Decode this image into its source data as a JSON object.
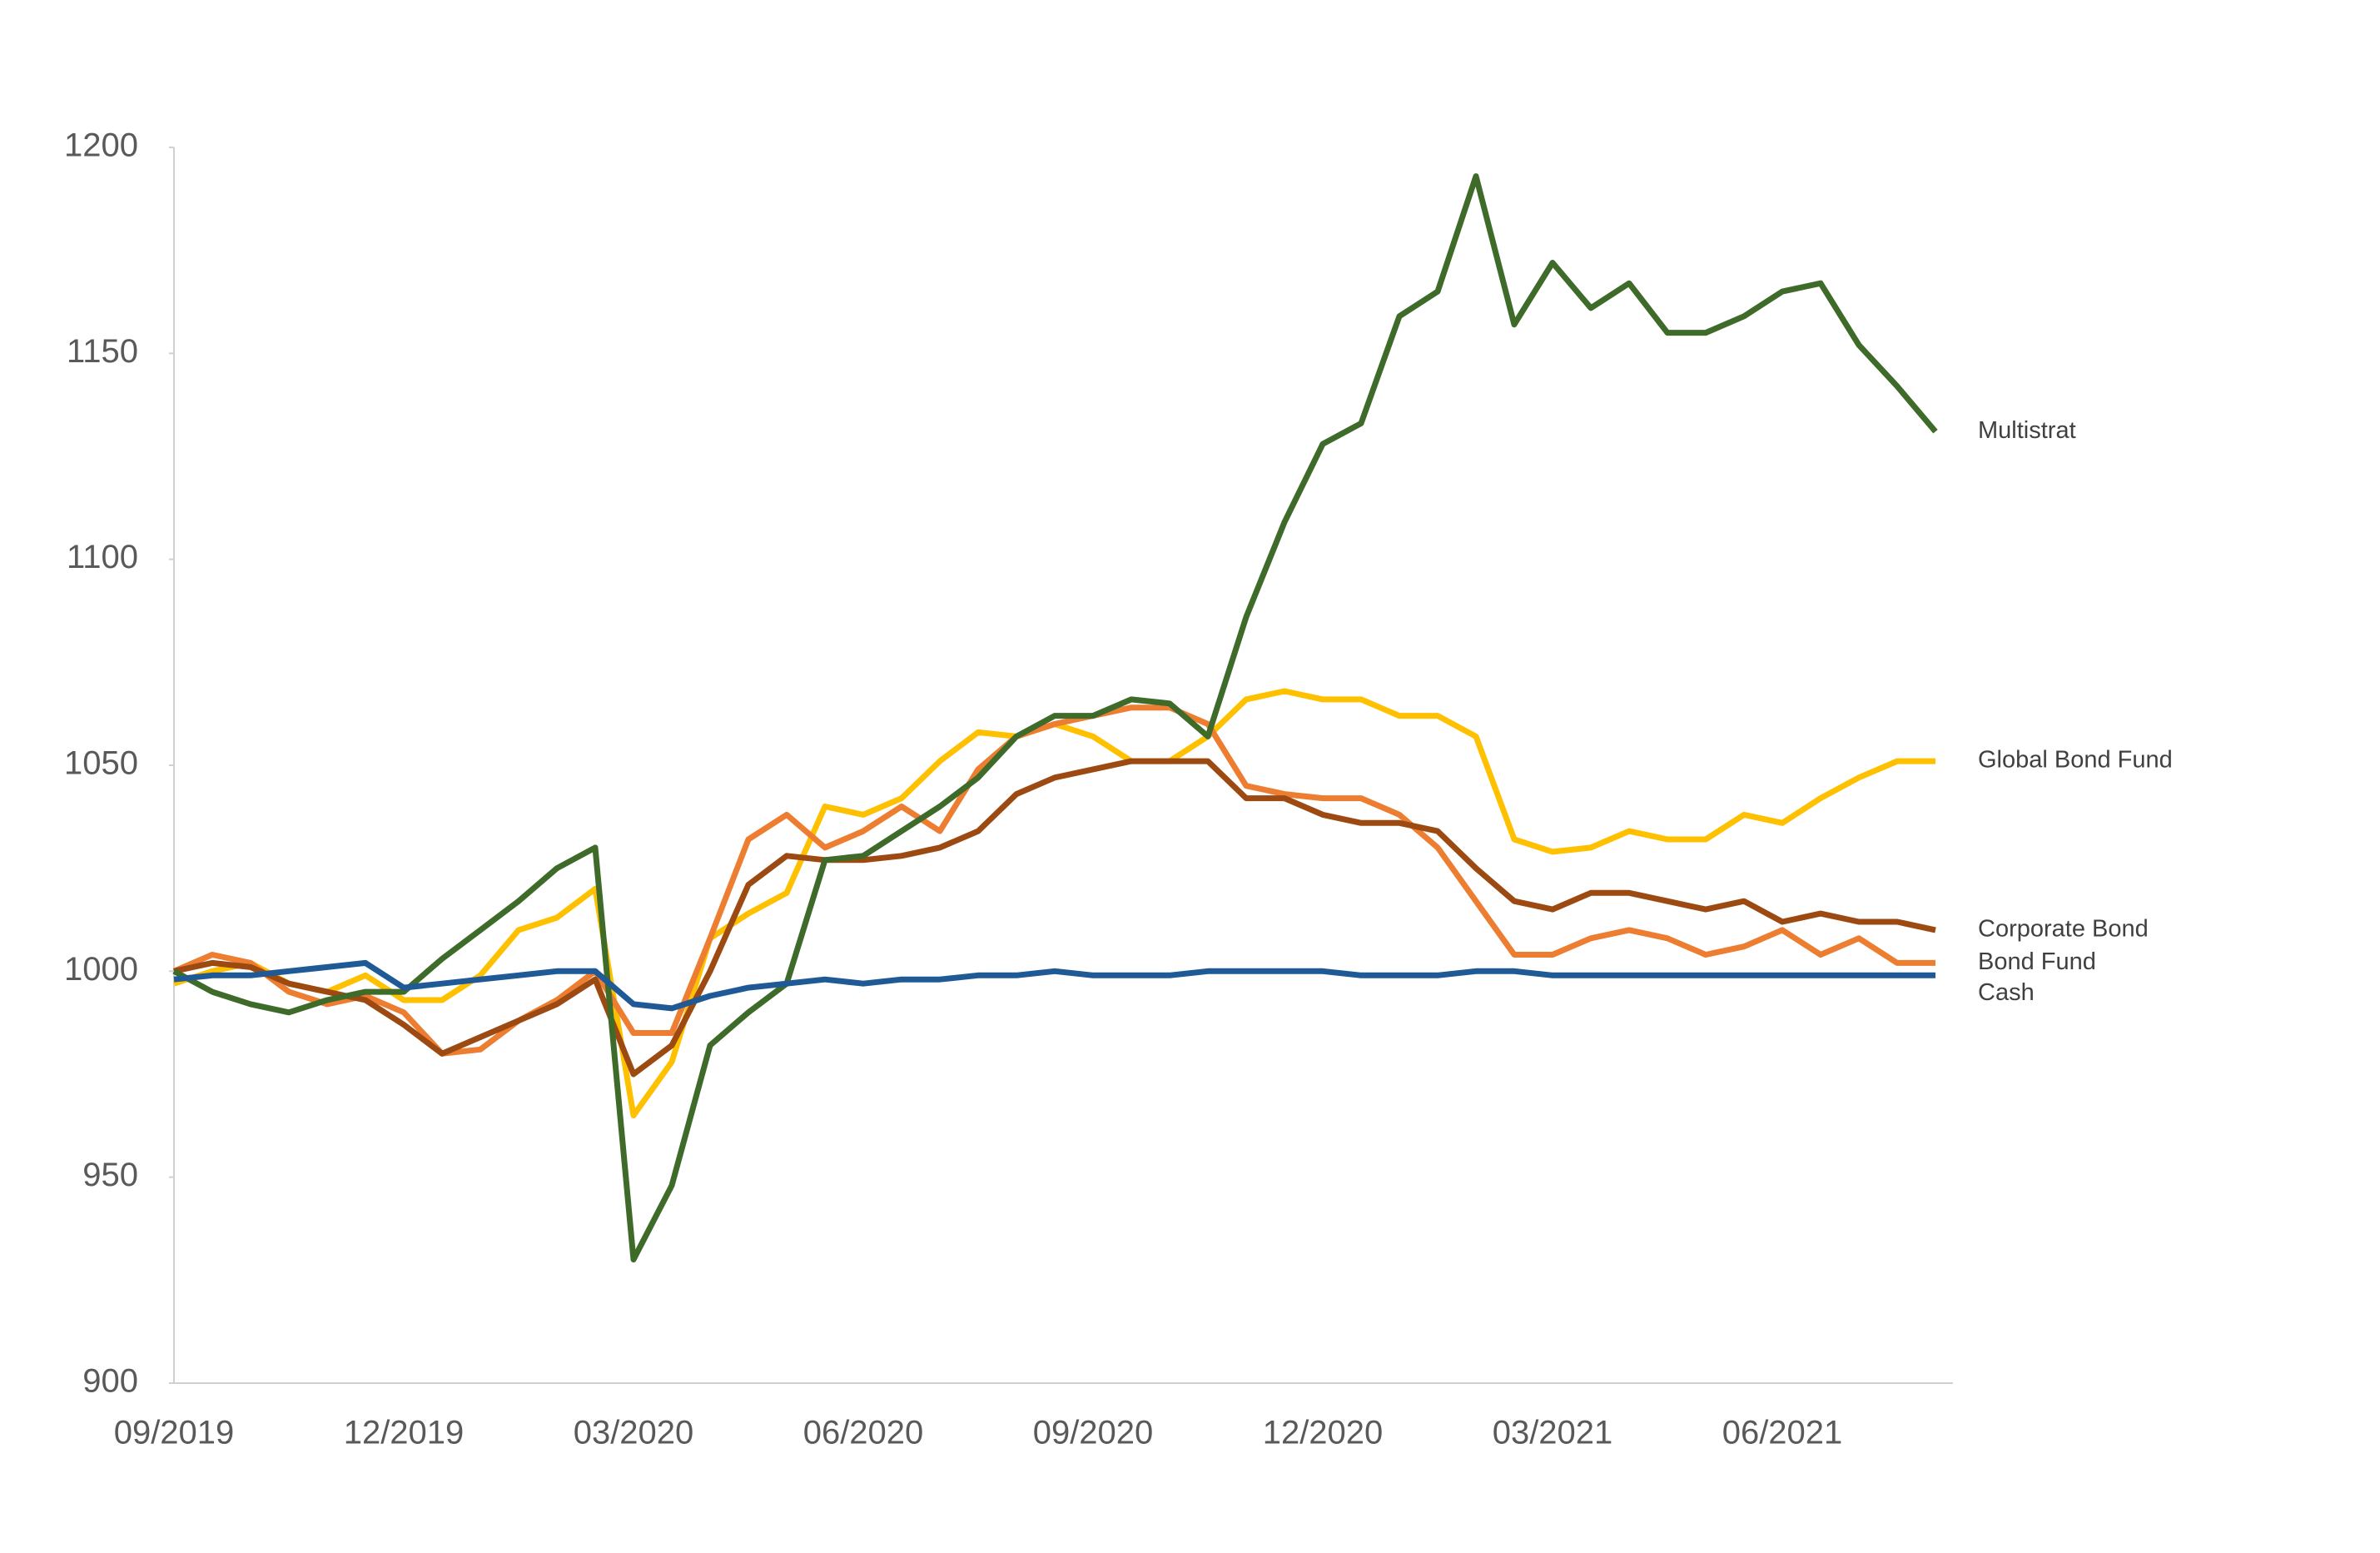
{
  "chart_data": {
    "type": "line",
    "categories": [
      "09/2019",
      null,
      null,
      null,
      null,
      null,
      "12/2019",
      null,
      null,
      null,
      null,
      null,
      "03/2020",
      null,
      null,
      null,
      null,
      null,
      "06/2020",
      null,
      null,
      null,
      null,
      null,
      "09/2020",
      null,
      null,
      null,
      null,
      null,
      "12/2020",
      null,
      null,
      null,
      null,
      null,
      "03/2021",
      null,
      null,
      null,
      null,
      null,
      "06/2021",
      null,
      null,
      null,
      null
    ],
    "series": [
      {
        "name": "Global Bond Fund",
        "color": "#ffc000",
        "values": [
          997,
          1000,
          1002,
          997,
          995,
          999,
          993,
          993,
          999,
          1010,
          1013,
          1020,
          965,
          978,
          1008,
          1014,
          1019,
          1040,
          1038,
          1042,
          1051,
          1058,
          1057,
          1060,
          1057,
          1051,
          1051,
          1057,
          1066,
          1068,
          1066,
          1066,
          1062,
          1062,
          1057,
          1032,
          1029,
          1030,
          1034,
          1032,
          1032,
          1038,
          1036,
          1042,
          1047,
          1051,
          1051
        ]
      },
      {
        "name": "Bond Fund",
        "color": "#ed7d31",
        "values": [
          1000,
          1004,
          1002,
          995,
          992,
          994,
          990,
          980,
          981,
          988,
          993,
          1000,
          985,
          985,
          1008,
          1032,
          1038,
          1030,
          1034,
          1040,
          1034,
          1049,
          1057,
          1060,
          1062,
          1064,
          1064,
          1060,
          1045,
          1043,
          1042,
          1042,
          1038,
          1030,
          1017,
          1004,
          1004,
          1008,
          1010,
          1008,
          1004,
          1006,
          1010,
          1004,
          1008,
          1002,
          1002
        ]
      },
      {
        "name": "Corporate Bond",
        "color": "#9c4a12",
        "values": [
          1000,
          1002,
          1001,
          997,
          995,
          993,
          987,
          980,
          984,
          988,
          992,
          998,
          975,
          982,
          1000,
          1021,
          1028,
          1027,
          1027,
          1028,
          1030,
          1034,
          1043,
          1047,
          1049,
          1051,
          1051,
          1051,
          1042,
          1042,
          1038,
          1036,
          1036,
          1034,
          1025,
          1017,
          1015,
          1019,
          1019,
          1017,
          1015,
          1017,
          1012,
          1014,
          1012,
          1012,
          1010
        ]
      },
      {
        "name": "Multistrat",
        "color": "#3f6b2a",
        "values": [
          1000,
          995,
          992,
          990,
          993,
          995,
          995,
          1003,
          1010,
          1017,
          1025,
          1030,
          930,
          948,
          982,
          990,
          997,
          1027,
          1028,
          1034,
          1040,
          1047,
          1057,
          1062,
          1062,
          1066,
          1065,
          1057,
          1086,
          1109,
          1128,
          1133,
          1159,
          1165,
          1193,
          1157,
          1172,
          1161,
          1167,
          1155,
          1155,
          1159,
          1165,
          1167,
          1152,
          1142,
          1131
        ]
      },
      {
        "name": "Cash",
        "color": "#1f5a96",
        "values": [
          998,
          999,
          999,
          1000,
          1001,
          1002,
          996,
          997,
          998,
          999,
          1000,
          1000,
          992,
          991,
          994,
          996,
          997,
          998,
          997,
          998,
          998,
          999,
          999,
          1000,
          999,
          999,
          999,
          1000,
          1000,
          1000,
          1000,
          999,
          999,
          999,
          1000,
          1000,
          999,
          999,
          999,
          999,
          999,
          999,
          999,
          999,
          999,
          999,
          999
        ]
      }
    ],
    "ylim": [
      900,
      1200
    ],
    "yticks": [
      900,
      950,
      1000,
      1050,
      1100,
      1150,
      1200
    ],
    "grid": false
  }
}
